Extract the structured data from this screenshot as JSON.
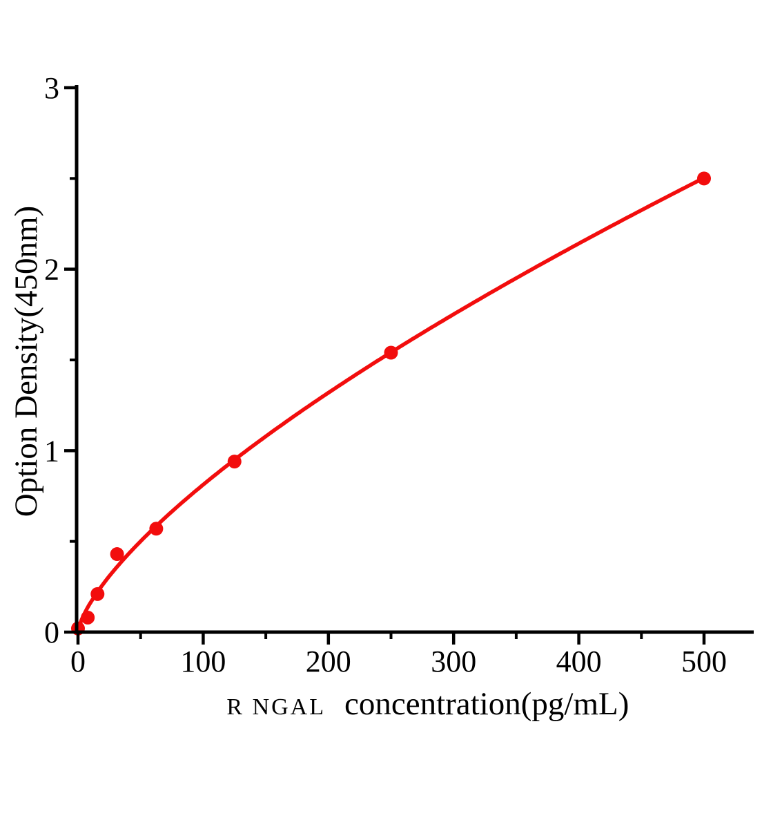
{
  "chart_data": {
    "type": "scatter",
    "title": "",
    "xlabel_prefix": "R NGAL",
    "xlabel": "concentration(pg/mL)",
    "ylabel": "Option Density(450nm)",
    "x": [
      0,
      7.8,
      15.6,
      31.2,
      62.5,
      125,
      250,
      500
    ],
    "y": [
      0.02,
      0.08,
      0.21,
      0.43,
      0.57,
      0.94,
      1.54,
      2.5
    ],
    "x_ticks": [
      0,
      100,
      200,
      300,
      400,
      500
    ],
    "x_minor_ticks": [
      50,
      150,
      250,
      350,
      450
    ],
    "y_ticks": [
      0,
      1,
      2,
      3
    ],
    "y_minor_ticks": [
      0.5,
      1.5,
      2.5
    ],
    "xlim": [
      0,
      540
    ],
    "ylim": [
      0,
      3
    ],
    "grid": false,
    "legend_position": "none",
    "curve_fit": {
      "type": "power",
      "a": 0.0325,
      "b": 0.699
    },
    "curve_color": "#f20d0d",
    "axis_color": "#000000",
    "marker_radius": 10
  }
}
